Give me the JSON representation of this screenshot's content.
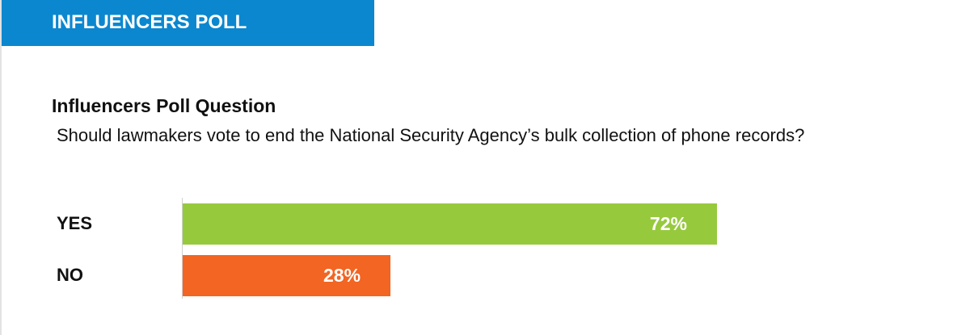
{
  "header": {
    "title": "INFLUENCERS POLL"
  },
  "chart_data": {
    "type": "bar",
    "orientation": "horizontal",
    "title": "Influencers Poll Question",
    "subtitle": "Should lawmakers vote to end the National Security Agency’s bulk collection of phone records?",
    "categories": [
      "YES",
      "NO"
    ],
    "values": [
      72,
      28
    ],
    "value_labels": [
      "72%",
      "28%"
    ],
    "colors": [
      "#97c93d",
      "#f26522"
    ]
  }
}
